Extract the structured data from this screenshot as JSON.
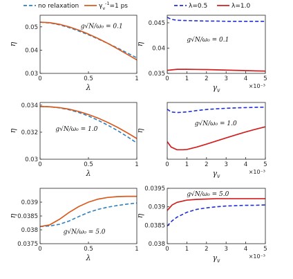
{
  "colors": {
    "teal_dashed": "#2e7fbf",
    "orange_solid": "#d95a1e",
    "blue_dashed": "#1f2ed6",
    "red_solid": "#d11f1f",
    "axis": "#222222",
    "text": "#111111"
  },
  "legend_left": [
    {
      "label": "no relaxation",
      "style": "dashed",
      "color": "#2e7fbf"
    },
    {
      "label": "γ_v^{-1}=1 ps",
      "style": "solid",
      "color": "#d95a1e"
    }
  ],
  "legend_right": [
    {
      "label": "λ=0.5",
      "style": "dashed",
      "color": "#1f2ed6"
    },
    {
      "label": "λ=1.0",
      "style": "solid",
      "color": "#d11f1f"
    }
  ],
  "chart_data": [
    {
      "type": "line",
      "annotation": "g√N/ω₀ = 0.1",
      "xlabel": "λ",
      "ylabel": "η",
      "xlim": [
        0,
        1
      ],
      "ylim": [
        0.03,
        0.055
      ],
      "xticks": [
        "0",
        "0.5",
        "1"
      ],
      "xtick_values": [
        0,
        0.5,
        1
      ],
      "yticks": [
        "0.03",
        "0.04",
        "0.05"
      ],
      "ytick_values": [
        0.03,
        0.04,
        0.05
      ],
      "x_multiplier": "",
      "series": [
        {
          "name": "no relaxation",
          "style": "dashed",
          "color": "#2e7fbf",
          "x": [
            0,
            0.1,
            0.2,
            0.3,
            0.4,
            0.5,
            0.6,
            0.7,
            0.8,
            0.9,
            1.0
          ],
          "y": [
            0.052,
            0.0517,
            0.0509,
            0.0497,
            0.0482,
            0.0466,
            0.0448,
            0.0429,
            0.0409,
            0.0388,
            0.0367
          ]
        },
        {
          "name": "γ_v^{-1}=1 ps",
          "style": "solid",
          "color": "#d95a1e",
          "x": [
            0,
            0.1,
            0.2,
            0.3,
            0.4,
            0.5,
            0.6,
            0.7,
            0.8,
            0.9,
            1.0
          ],
          "y": [
            0.052,
            0.0518,
            0.0511,
            0.05,
            0.0486,
            0.0469,
            0.045,
            0.0429,
            0.0406,
            0.0382,
            0.0358
          ]
        }
      ]
    },
    {
      "type": "line",
      "annotation": "g√N/ω₀ = 0.1",
      "xlabel": "γ_v",
      "ylabel": "η",
      "xlim": [
        0,
        5
      ],
      "ylim": [
        0.035,
        0.0465
      ],
      "xticks": [
        "0",
        "1",
        "2",
        "3",
        "4",
        "5"
      ],
      "xtick_values": [
        0,
        1,
        2,
        3,
        4,
        5
      ],
      "yticks": [
        "0.035",
        "0.04",
        "0.045"
      ],
      "ytick_values": [
        0.035,
        0.04,
        0.045
      ],
      "x_multiplier": "×10⁻³",
      "series": [
        {
          "name": "λ=0.5",
          "style": "dashed",
          "color": "#1f2ed6",
          "x": [
            0,
            0.2,
            0.5,
            1,
            1.5,
            2,
            2.5,
            3,
            3.5,
            4,
            4.5,
            5
          ],
          "y": [
            0.0461,
            0.0457,
            0.0455,
            0.04545,
            0.0454,
            0.04535,
            0.04535,
            0.0453,
            0.0453,
            0.0453,
            0.0453,
            0.0453
          ]
        },
        {
          "name": "λ=1.0",
          "style": "solid",
          "color": "#d11f1f",
          "x": [
            0,
            0.5,
            1,
            1.5,
            2,
            2.5,
            3,
            3.5,
            4,
            4.5,
            5
          ],
          "y": [
            0.0356,
            0.0358,
            0.0358,
            0.03578,
            0.03575,
            0.0357,
            0.03565,
            0.0356,
            0.03555,
            0.0355,
            0.03545
          ]
        }
      ]
    },
    {
      "type": "line",
      "annotation": "g√N/ω₀ = 1.0",
      "xlabel": "λ",
      "ylabel": "η",
      "xlim": [
        0,
        1
      ],
      "ylim": [
        0.03,
        0.0342
      ],
      "xticks": [
        "0",
        "0.5",
        "1"
      ],
      "xtick_values": [
        0,
        0.5,
        1
      ],
      "yticks": [
        "0.03",
        "0.032",
        "0.034"
      ],
      "ytick_values": [
        0.03,
        0.032,
        0.034
      ],
      "x_multiplier": "",
      "series": [
        {
          "name": "no relaxation",
          "style": "dashed",
          "color": "#2e7fbf",
          "x": [
            0,
            0.1,
            0.2,
            0.3,
            0.4,
            0.5,
            0.6,
            0.7,
            0.8,
            0.9,
            1.0
          ],
          "y": [
            0.0339,
            0.03388,
            0.0338,
            0.03366,
            0.03346,
            0.0332,
            0.03288,
            0.03252,
            0.03212,
            0.03168,
            0.0312
          ]
        },
        {
          "name": "γ_v^{-1}=1 ps",
          "style": "solid",
          "color": "#d95a1e",
          "x": [
            0,
            0.1,
            0.2,
            0.3,
            0.4,
            0.5,
            0.6,
            0.7,
            0.8,
            0.9,
            1.0
          ],
          "y": [
            0.0339,
            0.03388,
            0.03382,
            0.0337,
            0.03353,
            0.03331,
            0.03304,
            0.03272,
            0.03236,
            0.03196,
            0.03153
          ]
        }
      ]
    },
    {
      "type": "line",
      "annotation": "g√N/ω₀ = 1.0",
      "xlabel": "γ_v",
      "ylabel": "η",
      "xlim": [
        0,
        5
      ],
      "ylim": [
        0.03,
        0.0342
      ],
      "xticks": [
        "0",
        "1",
        "2",
        "3",
        "4",
        "5"
      ],
      "xtick_values": [
        0,
        1,
        2,
        3,
        4,
        5
      ],
      "yticks": [],
      "ytick_values": [],
      "x_multiplier": "×10⁻³",
      "series": [
        {
          "name": "λ=0.5",
          "style": "dashed",
          "color": "#1f2ed6",
          "x": [
            0,
            0.2,
            0.5,
            1,
            1.5,
            2,
            2.5,
            3,
            3.5,
            4,
            4.5,
            5
          ],
          "y": [
            0.0337,
            0.0335,
            0.03345,
            0.0335,
            0.0336,
            0.03368,
            0.03373,
            0.03377,
            0.0338,
            0.03382,
            0.03384,
            0.03385
          ]
        },
        {
          "name": "λ=1.0",
          "style": "solid",
          "color": "#d11f1f",
          "x": [
            0,
            0.2,
            0.5,
            0.8,
            1,
            1.5,
            2,
            2.5,
            3,
            3.5,
            4,
            4.5,
            5
          ],
          "y": [
            0.0313,
            0.0309,
            0.0307,
            0.0307,
            0.03072,
            0.0309,
            0.03112,
            0.03135,
            0.03158,
            0.0318,
            0.03202,
            0.03222,
            0.0324
          ]
        }
      ]
    },
    {
      "type": "line",
      "annotation": "g√N/ω₀ = 5.0",
      "xlabel": "λ",
      "ylabel": "η",
      "xlim": [
        0,
        1
      ],
      "ylim": [
        0.0375,
        0.0395
      ],
      "xticks": [
        "0",
        "0.5",
        "1"
      ],
      "xtick_values": [
        0,
        0.5,
        1
      ],
      "yticks": [
        "0.0375",
        "0.038",
        "0.0385",
        "0.039"
      ],
      "ytick_values": [
        0.0375,
        0.038,
        0.0385,
        0.039
      ],
      "x_multiplier": "",
      "series": [
        {
          "name": "no relaxation",
          "style": "dashed",
          "color": "#2e7fbf",
          "x": [
            0,
            0.1,
            0.2,
            0.3,
            0.4,
            0.5,
            0.6,
            0.7,
            0.8,
            0.9,
            1.0
          ],
          "y": [
            0.03812,
            0.03814,
            0.0382,
            0.03832,
            0.03848,
            0.03863,
            0.03874,
            0.03882,
            0.03888,
            0.03893,
            0.03897
          ]
        },
        {
          "name": "γ_v^{-1}=1 ps",
          "style": "solid",
          "color": "#d95a1e",
          "x": [
            0,
            0.1,
            0.2,
            0.3,
            0.4,
            0.5,
            0.6,
            0.7,
            0.8,
            0.9,
            1.0
          ],
          "y": [
            0.03812,
            0.03818,
            0.03838,
            0.03863,
            0.03884,
            0.039,
            0.03911,
            0.03917,
            0.0392,
            0.03921,
            0.03921
          ]
        }
      ]
    },
    {
      "type": "line",
      "annotation": "g√N/ω₀ = 5.0",
      "xlabel": "γ_v",
      "ylabel": "η",
      "xlim": [
        0,
        5
      ],
      "ylim": [
        0.038,
        0.0395
      ],
      "xticks": [
        "0",
        "1",
        "2",
        "3",
        "4",
        "5"
      ],
      "xtick_values": [
        0,
        1,
        2,
        3,
        4,
        5
      ],
      "yticks": [
        "0.038",
        "0.0385",
        "0.039",
        "0.0395"
      ],
      "ytick_values": [
        0.038,
        0.0385,
        0.039,
        0.0395
      ],
      "x_multiplier": "×10⁻³",
      "series": [
        {
          "name": "λ=0.5",
          "style": "dashed",
          "color": "#1f2ed6",
          "x": [
            0,
            0.25,
            0.5,
            1,
            1.5,
            2,
            2.5,
            3,
            3.5,
            4,
            4.5,
            5
          ],
          "y": [
            0.03848,
            0.03862,
            0.03872,
            0.03885,
            0.03893,
            0.03897,
            0.039,
            0.03902,
            0.03903,
            0.03904,
            0.03904,
            0.03905
          ]
        },
        {
          "name": "λ=1.0",
          "style": "solid",
          "color": "#d11f1f",
          "x": [
            0,
            0.25,
            0.5,
            1,
            1.5,
            2,
            2.5,
            3,
            3.5,
            4,
            4.5,
            5
          ],
          "y": [
            0.0389,
            0.03905,
            0.03912,
            0.03918,
            0.0392,
            0.03921,
            0.03922,
            0.03922,
            0.03922,
            0.03922,
            0.03922,
            0.03922
          ]
        }
      ]
    }
  ]
}
